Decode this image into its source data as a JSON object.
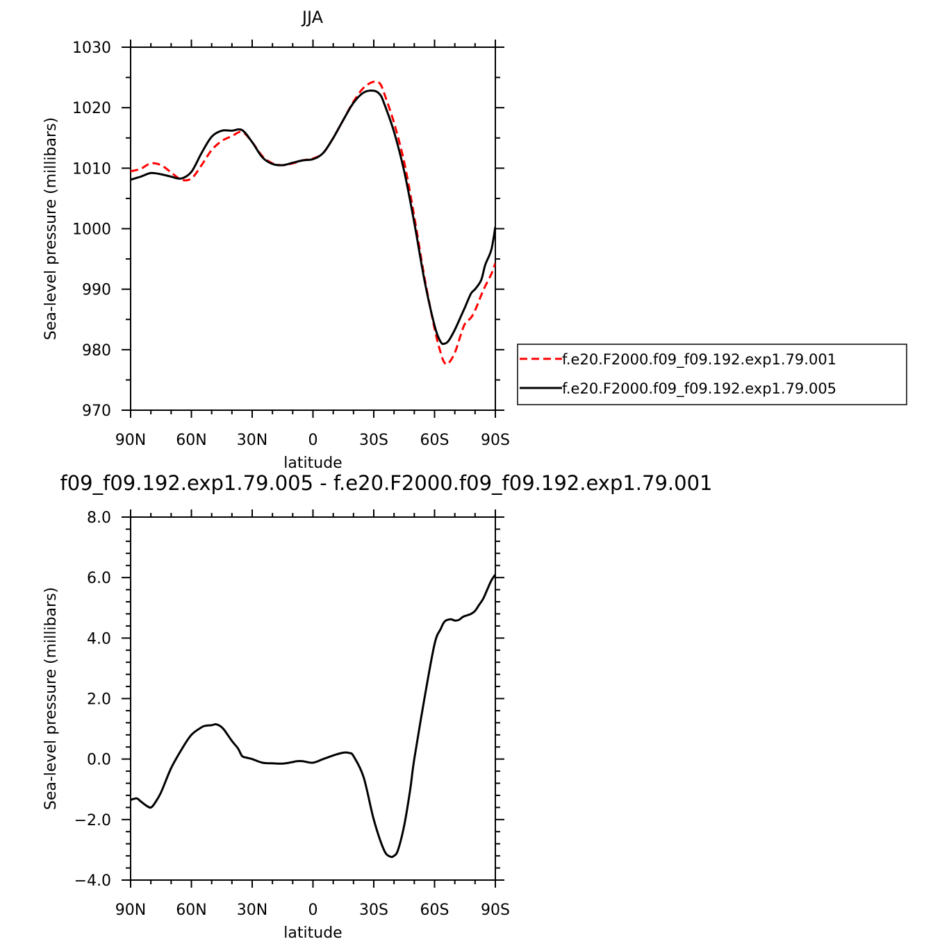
{
  "chart_data": [
    {
      "type": "line",
      "title": "JJA",
      "xlabel": "latitude",
      "ylabel": "Sea-level pressure (millibars)",
      "xlim": [
        90,
        -90
      ],
      "ylim": [
        970,
        1030
      ],
      "xticks": [
        90,
        60,
        30,
        0,
        -30,
        -60,
        -90
      ],
      "xtick_labels": [
        "90N",
        "60N",
        "30N",
        "0",
        "30S",
        "60S",
        "90S"
      ],
      "yticks": [
        970,
        980,
        990,
        1000,
        1010,
        1020,
        1030
      ],
      "ytick_labels": [
        "970",
        "980",
        "990",
        "1000",
        "1010",
        "1020",
        "1030"
      ],
      "legend_position": "right",
      "series": [
        {
          "name": "f.e20.F2000.f09_f09.192.exp1.79.001",
          "color": "#ff0000",
          "dash": "dashed",
          "x": [
            90,
            85,
            80,
            75,
            70,
            65,
            60,
            55,
            50,
            45,
            40,
            35,
            30,
            25,
            20,
            15,
            10,
            5,
            0,
            -5,
            -10,
            -15,
            -20,
            -25,
            -30,
            -33,
            -35,
            -40,
            -45,
            -50,
            -55,
            -60,
            -63,
            -65,
            -67,
            -70,
            -73,
            -75,
            -78,
            -80,
            -83,
            -85,
            -88,
            -90
          ],
          "y": [
            1009.5,
            1009.9,
            1010.8,
            1010.5,
            1009.3,
            1008.1,
            1008.3,
            1010.5,
            1013,
            1014.5,
            1015.3,
            1016.0,
            1014.3,
            1012.0,
            1010.8,
            1010.5,
            1010.8,
            1011.3,
            1011.6,
            1012.5,
            1015.0,
            1018.0,
            1021.0,
            1023.3,
            1024.3,
            1024.0,
            1022.5,
            1017.5,
            1011.0,
            1002.0,
            992.0,
            983.5,
            979.5,
            977.8,
            977.8,
            979.5,
            982.5,
            984.3,
            985.3,
            986.5,
            989.0,
            990.5,
            992.5,
            994.3
          ]
        },
        {
          "name": "f.e20.F2000.f09_f09.192.exp1.79.005",
          "color": "#000000",
          "dash": "solid",
          "x": [
            90,
            85,
            80,
            75,
            70,
            65,
            60,
            55,
            50,
            45,
            40,
            35,
            30,
            25,
            20,
            15,
            10,
            5,
            0,
            -5,
            -10,
            -15,
            -20,
            -25,
            -30,
            -33,
            -35,
            -40,
            -45,
            -50,
            -55,
            -60,
            -63,
            -65,
            -67,
            -70,
            -73,
            -75,
            -78,
            -80,
            -83,
            -85,
            -88,
            -90
          ],
          "y": [
            1008.1,
            1008.6,
            1009.2,
            1009.0,
            1008.6,
            1008.3,
            1009.4,
            1012.5,
            1015.2,
            1016.2,
            1016.2,
            1016.3,
            1014.3,
            1011.8,
            1010.7,
            1010.5,
            1010.9,
            1011.3,
            1011.5,
            1012.5,
            1015.0,
            1018.0,
            1020.8,
            1022.5,
            1022.8,
            1022.2,
            1020.8,
            1016.0,
            1009.5,
            1001.0,
            991.5,
            984.0,
            981.3,
            981.0,
            981.5,
            983.3,
            985.5,
            987.0,
            989.3,
            990.0,
            991.5,
            994.0,
            996.5,
            1000.3
          ]
        }
      ]
    },
    {
      "type": "line",
      "title": "f09_f09.192.exp1.79.005 - f.e20.F2000.f09_f09.192.exp1.79.001",
      "xlabel": "latitude",
      "ylabel": "Sea-level pressure (millibars)",
      "xlim": [
        90,
        -90
      ],
      "ylim": [
        -4,
        8
      ],
      "xticks": [
        90,
        60,
        30,
        0,
        -30,
        -60,
        -90
      ],
      "xtick_labels": [
        "90N",
        "60N",
        "30N",
        "0",
        "30S",
        "60S",
        "90S"
      ],
      "yticks": [
        -4,
        -2,
        0,
        2,
        4,
        6,
        8
      ],
      "ytick_labels": [
        "−4.0",
        "−2.0",
        "0.0",
        "2.0",
        "4.0",
        "6.0",
        "8.0"
      ],
      "series": [
        {
          "color": "#000000",
          "dash": "solid",
          "x": [
            90,
            87,
            85,
            82,
            80,
            78,
            75,
            70,
            65,
            60,
            55,
            53,
            50,
            48,
            46,
            44,
            40,
            37,
            35,
            33,
            30,
            25,
            20,
            15,
            10,
            8,
            5,
            0,
            -5,
            -10,
            -14,
            -16,
            -18,
            -20,
            -25,
            -30,
            -35,
            -38,
            -40,
            -42,
            -45,
            -48,
            -50,
            -55,
            -60,
            -63,
            -65,
            -68,
            -70,
            -72,
            -74,
            -76,
            -78,
            -80,
            -82,
            -84,
            -86,
            -88,
            -90
          ],
          "y": [
            -1.35,
            -1.3,
            -1.4,
            -1.55,
            -1.6,
            -1.45,
            -1.1,
            -0.3,
            0.3,
            0.8,
            1.05,
            1.1,
            1.12,
            1.15,
            1.1,
            0.98,
            0.6,
            0.35,
            0.1,
            0.05,
            0.0,
            -0.12,
            -0.14,
            -0.15,
            -0.1,
            -0.07,
            -0.07,
            -0.12,
            -0.0,
            0.12,
            0.2,
            0.22,
            0.2,
            0.1,
            -0.6,
            -2.0,
            -3.0,
            -3.22,
            -3.2,
            -3.0,
            -2.2,
            -1.0,
            0.0,
            2.0,
            3.8,
            4.3,
            4.55,
            4.62,
            4.58,
            4.6,
            4.7,
            4.75,
            4.8,
            4.9,
            5.1,
            5.3,
            5.6,
            5.9,
            6.1
          ]
        }
      ]
    }
  ]
}
